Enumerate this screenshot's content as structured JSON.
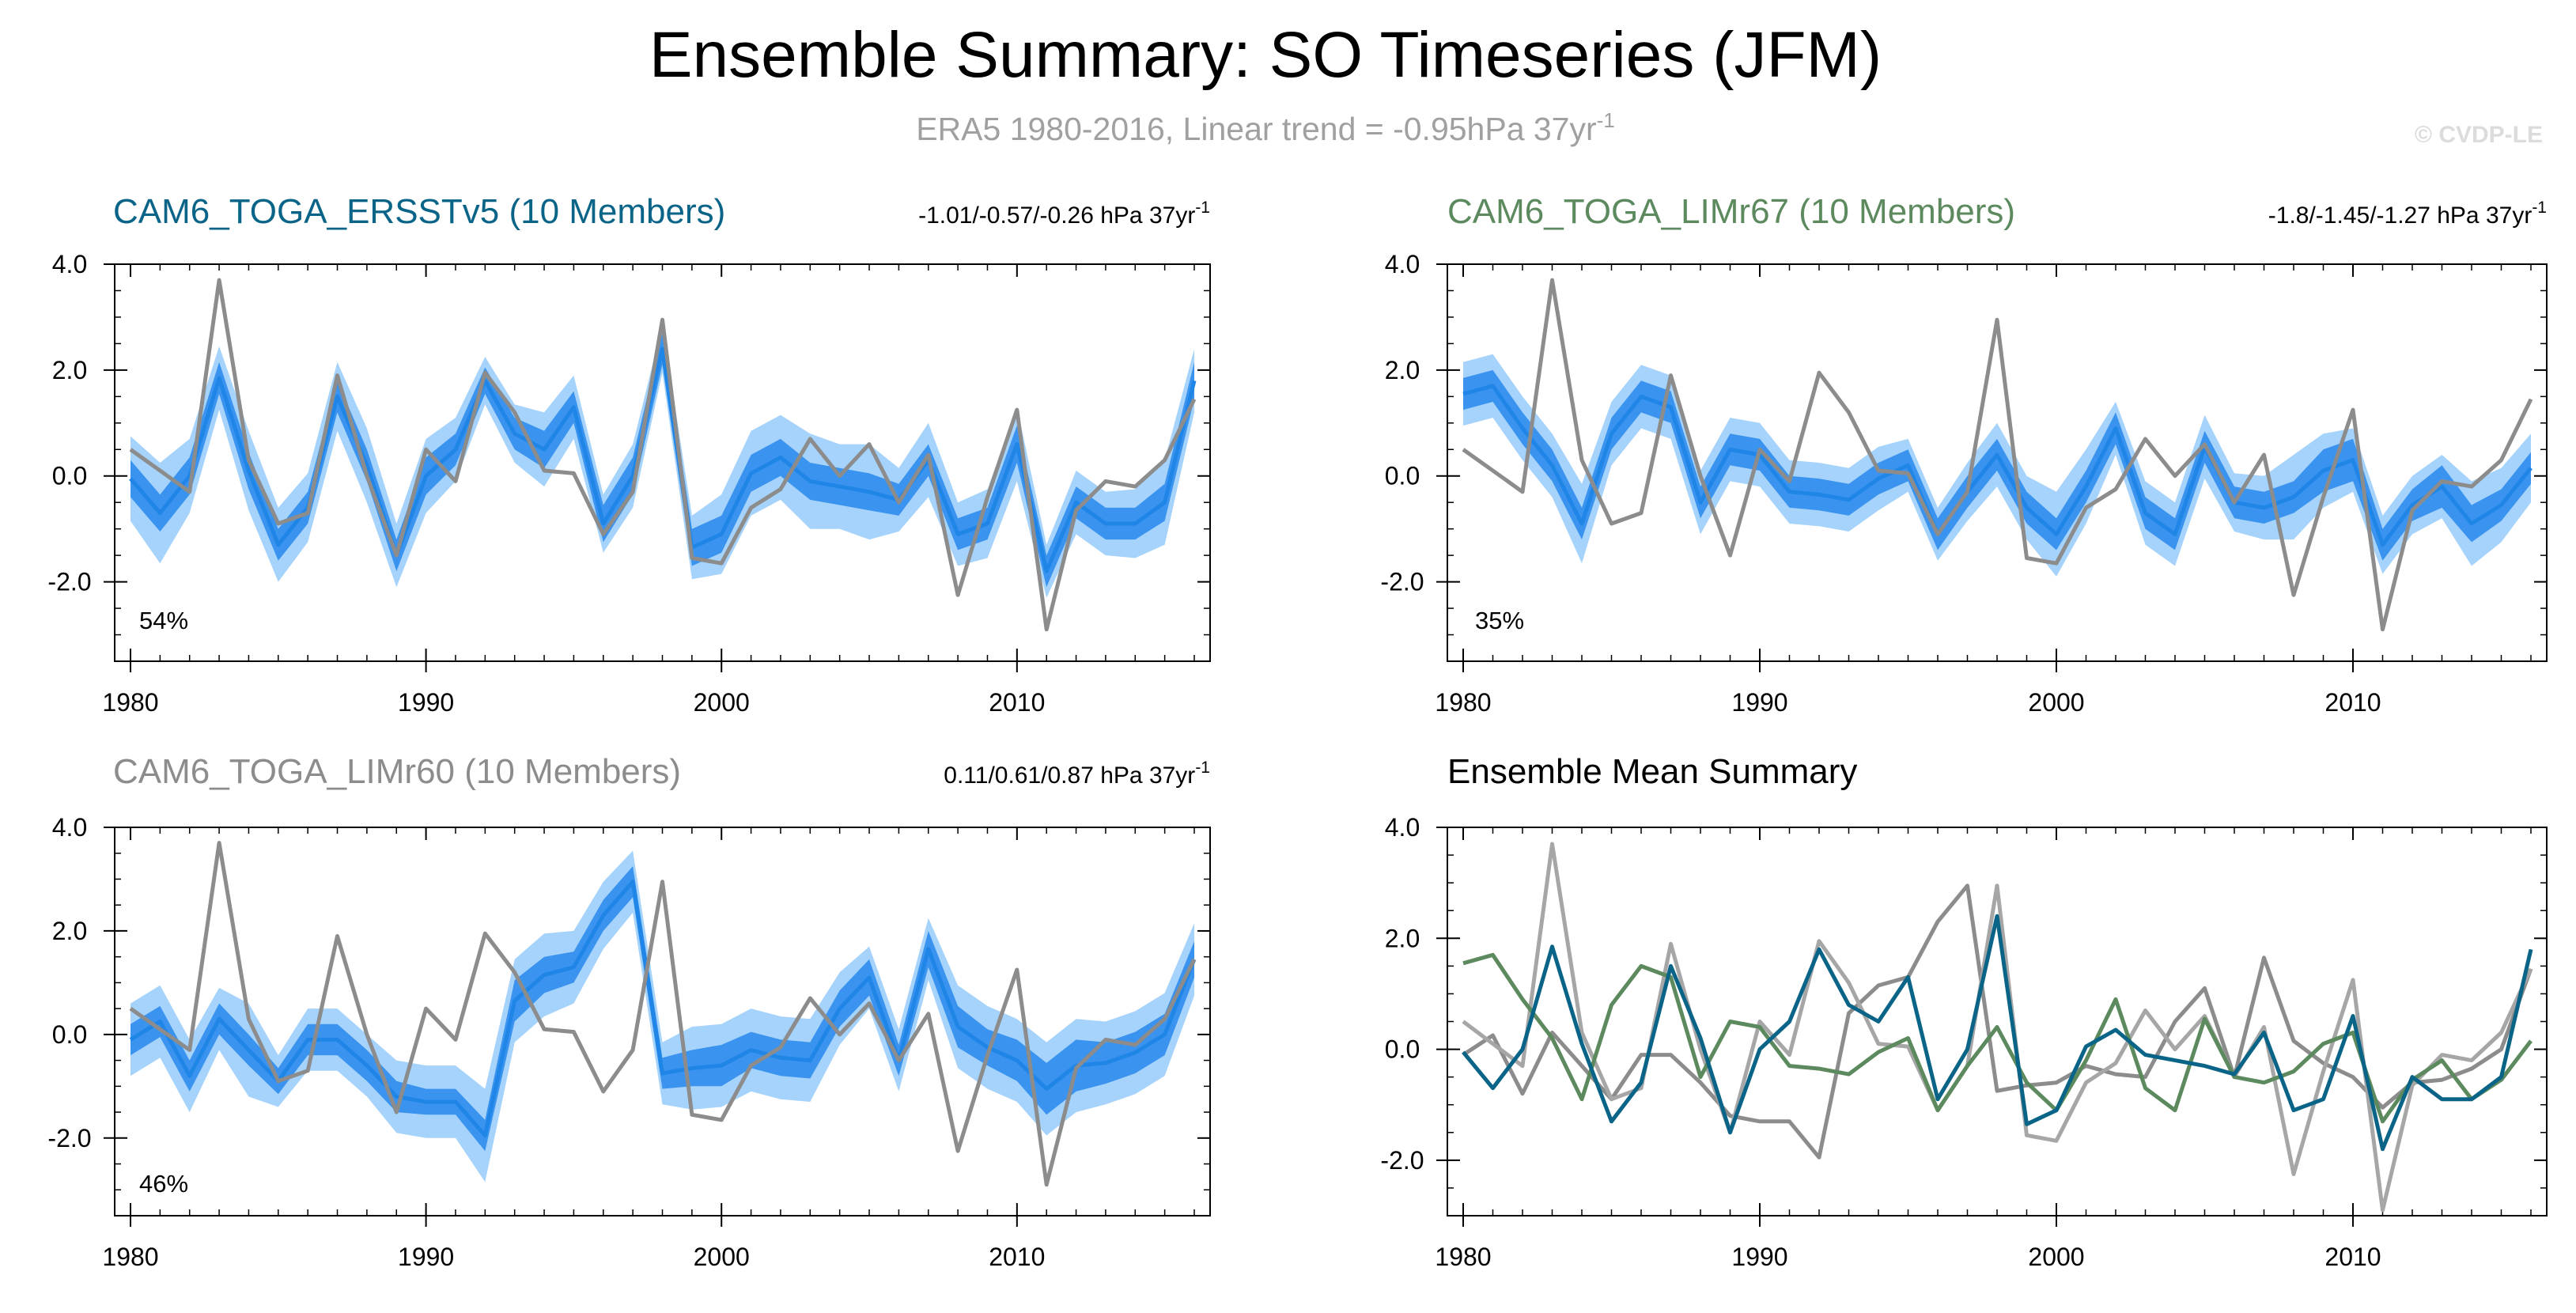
{
  "title": "Ensemble Summary: SO Timeseries (JFM)",
  "subtitle": {
    "text": "ERA5 1980-2016, Linear trend = -0.95hPa 37yr",
    "sup": "-1"
  },
  "copyright": "© CVDP-LE",
  "colors": {
    "obs": "#8c8c8c",
    "ens_mean": "#1f86e8",
    "band_inner": "#3a93ee",
    "band_outer": "#a6d3fb",
    "cam6_ersst": "#0a6488",
    "cam6_limr67": "#5c8a5e",
    "cam6_limr60": "#8c8c8c"
  },
  "chart_data": [
    {
      "type": "line",
      "panel": "top-left",
      "title": "CAM6_TOGA_ERSSTv5 (10 Members)",
      "title_color": "#0a6488",
      "trend": {
        "text": "-1.01/-0.57/-0.26 hPa 37yr",
        "sup": "-1"
      },
      "pct": "54%",
      "xlim": [
        1980,
        2016
      ],
      "ylim": [
        -3.5,
        4.0
      ],
      "xticks": [
        "1980",
        "1990",
        "2000",
        "2010"
      ],
      "yticks": [
        "4.0",
        "2.0",
        "0.0",
        "-2.0"
      ],
      "x": [
        1980,
        1981,
        1982,
        1983,
        1984,
        1985,
        1986,
        1987,
        1988,
        1989,
        1990,
        1991,
        1992,
        1993,
        1994,
        1995,
        1996,
        1997,
        1998,
        1999,
        2000,
        2001,
        2002,
        2003,
        2004,
        2005,
        2006,
        2007,
        2008,
        2009,
        2010,
        2011,
        2012,
        2013,
        2014,
        2015,
        2016
      ],
      "mean": [
        -0.05,
        -0.7,
        0.0,
        1.85,
        0.1,
        -1.3,
        -0.6,
        1.5,
        0.2,
        -1.5,
        0.0,
        0.5,
        1.8,
        0.8,
        0.5,
        1.3,
        -0.9,
        0.0,
        2.4,
        -1.35,
        -1.1,
        0.05,
        0.35,
        -0.1,
        -0.2,
        -0.3,
        -0.45,
        0.3,
        -1.1,
        -0.9,
        0.6,
        -1.8,
        -0.5,
        -0.9,
        -0.9,
        -0.5,
        1.8
      ],
      "inner_half": [
        0.35,
        0.35,
        0.35,
        0.3,
        0.35,
        0.3,
        0.3,
        0.3,
        0.3,
        0.3,
        0.35,
        0.3,
        0.25,
        0.3,
        0.35,
        0.3,
        0.35,
        0.35,
        0.3,
        0.35,
        0.35,
        0.35,
        0.35,
        0.35,
        0.35,
        0.35,
        0.3,
        0.3,
        0.3,
        0.3,
        0.35,
        0.3,
        0.3,
        0.3,
        0.3,
        0.35,
        0.35
      ],
      "outer_half": [
        0.8,
        0.95,
        0.7,
        0.6,
        0.75,
        0.7,
        0.65,
        0.65,
        0.7,
        0.6,
        0.7,
        0.6,
        0.45,
        0.55,
        0.7,
        0.6,
        0.55,
        0.6,
        0.45,
        0.6,
        0.75,
        0.8,
        0.8,
        0.9,
        0.8,
        0.9,
        0.6,
        0.7,
        0.6,
        0.65,
        0.7,
        0.5,
        0.6,
        0.6,
        0.65,
        0.8,
        0.6
      ],
      "obs": [
        0.5,
        0.1,
        -0.3,
        3.7,
        0.3,
        -0.9,
        -0.7,
        1.9,
        0.0,
        -1.5,
        0.5,
        -0.1,
        1.95,
        1.2,
        0.1,
        0.05,
        -1.1,
        -0.3,
        2.95,
        -1.55,
        -1.65,
        -0.6,
        -0.25,
        0.7,
        0.0,
        0.6,
        -0.5,
        0.4,
        -2.25,
        -0.4,
        1.25,
        -2.9,
        -0.65,
        -0.1,
        -0.2,
        0.3,
        1.45
      ]
    },
    {
      "type": "line",
      "panel": "top-right",
      "title": "CAM6_TOGA_LIMr67 (10 Members)",
      "title_color": "#5c8a5e",
      "trend": {
        "text": "-1.8/-1.45/-1.27 hPa 37yr",
        "sup": "-1"
      },
      "pct": "35%",
      "xlim": [
        1980,
        2016
      ],
      "ylim": [
        -3.5,
        4.0
      ],
      "xticks": [
        "1980",
        "1990",
        "2000",
        "2010"
      ],
      "yticks": [
        "4.0",
        "2.0",
        "0.0",
        "-2.0"
      ],
      "x": [
        1980,
        1981,
        1982,
        1983,
        1984,
        1985,
        1986,
        1987,
        1988,
        1989,
        1990,
        1991,
        1992,
        1993,
        1994,
        1995,
        1996,
        1997,
        1998,
        1999,
        2000,
        2001,
        2002,
        2003,
        2004,
        2005,
        2006,
        2007,
        2008,
        2009,
        2010,
        2011,
        2012,
        2013,
        2014,
        2015,
        2016
      ],
      "mean": [
        1.55,
        1.7,
        0.9,
        0.2,
        -0.9,
        0.8,
        1.5,
        1.3,
        -0.5,
        0.5,
        0.4,
        -0.3,
        -0.35,
        -0.45,
        -0.05,
        0.2,
        -1.1,
        -0.3,
        0.4,
        -0.6,
        -1.1,
        -0.2,
        0.9,
        -0.7,
        -1.1,
        0.55,
        -0.5,
        -0.6,
        -0.4,
        0.1,
        0.3,
        -1.3,
        -0.55,
        -0.2,
        -0.9,
        -0.55,
        0.15
      ],
      "inner_half": [
        0.3,
        0.3,
        0.3,
        0.3,
        0.3,
        0.3,
        0.3,
        0.3,
        0.3,
        0.3,
        0.3,
        0.3,
        0.3,
        0.3,
        0.3,
        0.3,
        0.3,
        0.3,
        0.3,
        0.3,
        0.3,
        0.3,
        0.3,
        0.3,
        0.3,
        0.3,
        0.3,
        0.3,
        0.3,
        0.4,
        0.4,
        0.3,
        0.3,
        0.4,
        0.35,
        0.3,
        0.3
      ],
      "outer_half": [
        0.6,
        0.6,
        0.6,
        0.6,
        0.75,
        0.6,
        0.6,
        0.6,
        0.6,
        0.6,
        0.6,
        0.6,
        0.6,
        0.6,
        0.6,
        0.5,
        0.5,
        0.55,
        0.6,
        0.6,
        0.8,
        0.7,
        0.5,
        0.6,
        0.6,
        0.6,
        0.55,
        0.6,
        0.8,
        0.7,
        0.6,
        0.55,
        0.55,
        0.6,
        0.8,
        0.7,
        0.65
      ],
      "obs": [
        0.5,
        0.1,
        -0.3,
        3.7,
        0.3,
        -0.9,
        -0.7,
        1.9,
        0.0,
        -1.5,
        0.5,
        -0.1,
        1.95,
        1.2,
        0.1,
        0.05,
        -1.1,
        -0.3,
        2.95,
        -1.55,
        -1.65,
        -0.6,
        -0.25,
        0.7,
        0.0,
        0.6,
        -0.5,
        0.4,
        -2.25,
        -0.4,
        1.25,
        -2.9,
        -0.65,
        -0.1,
        -0.2,
        0.3,
        1.45
      ]
    },
    {
      "type": "line",
      "panel": "bottom-left",
      "title": "CAM6_TOGA_LIMr60 (10 Members)",
      "title_color": "#8c8c8c",
      "trend": {
        "text": "0.11/0.61/0.87 hPa 37yr",
        "sup": "-1"
      },
      "pct": "46%",
      "xlim": [
        1980,
        2016
      ],
      "ylim": [
        -3.5,
        4.0
      ],
      "xticks": [
        "1980",
        "1990",
        "2000",
        "2010"
      ],
      "yticks": [
        "4.0",
        "2.0",
        "0.0",
        "-2.0"
      ],
      "x": [
        1980,
        1981,
        1982,
        1983,
        1984,
        1985,
        1986,
        1987,
        1988,
        1989,
        1990,
        1991,
        1992,
        1993,
        1994,
        1995,
        1996,
        1997,
        1998,
        1999,
        2000,
        2001,
        2002,
        2003,
        2004,
        2005,
        2006,
        2007,
        2008,
        2009,
        2010,
        2011,
        2012,
        2013,
        2014,
        2015,
        2016
      ],
      "mean": [
        -0.1,
        0.25,
        -0.8,
        0.3,
        -0.3,
        -0.9,
        -0.1,
        -0.1,
        -0.6,
        -1.2,
        -1.3,
        -1.3,
        -1.95,
        0.65,
        1.15,
        1.3,
        2.3,
        2.95,
        -0.75,
        -0.65,
        -0.6,
        -0.3,
        -0.45,
        -0.5,
        0.5,
        1.1,
        -0.5,
        1.65,
        0.15,
        -0.25,
        -0.5,
        -1.05,
        -0.6,
        -0.55,
        -0.35,
        0.0,
        1.45
      ],
      "inner_half": [
        0.3,
        0.3,
        0.3,
        0.3,
        0.3,
        0.25,
        0.3,
        0.3,
        0.3,
        0.3,
        0.25,
        0.25,
        0.3,
        0.4,
        0.35,
        0.3,
        0.3,
        0.3,
        0.3,
        0.35,
        0.4,
        0.35,
        0.35,
        0.35,
        0.35,
        0.35,
        0.3,
        0.35,
        0.4,
        0.35,
        0.4,
        0.5,
        0.5,
        0.4,
        0.4,
        0.4,
        0.35
      ],
      "outer_half": [
        0.7,
        0.7,
        0.7,
        0.6,
        0.9,
        0.5,
        0.6,
        0.6,
        0.6,
        0.7,
        0.7,
        0.7,
        0.9,
        0.8,
        0.8,
        0.7,
        0.65,
        0.6,
        0.6,
        0.8,
        0.8,
        0.8,
        0.8,
        0.8,
        0.7,
        0.6,
        0.6,
        0.6,
        0.8,
        0.8,
        0.8,
        0.9,
        0.9,
        0.8,
        0.8,
        0.8,
        0.7
      ],
      "obs": [
        0.5,
        0.1,
        -0.3,
        3.7,
        0.3,
        -0.9,
        -0.7,
        1.9,
        0.0,
        -1.5,
        0.5,
        -0.1,
        1.95,
        1.2,
        0.1,
        0.05,
        -1.1,
        -0.3,
        2.95,
        -1.55,
        -1.65,
        -0.6,
        -0.25,
        0.7,
        0.0,
        0.6,
        -0.5,
        0.4,
        -2.25,
        -0.4,
        1.25,
        -2.9,
        -0.65,
        -0.1,
        -0.2,
        0.3,
        1.45
      ]
    },
    {
      "type": "line",
      "panel": "bottom-right",
      "title": "Ensemble Mean Summary",
      "title_color": "#000000",
      "xlim": [
        1980,
        2016
      ],
      "ylim": [
        -3.0,
        4.0
      ],
      "xticks": [
        "1980",
        "1990",
        "2000",
        "2010"
      ],
      "yticks": [
        "4.0",
        "2.0",
        "0.0",
        "-2.0"
      ],
      "x": [
        1980,
        1981,
        1982,
        1983,
        1984,
        1985,
        1986,
        1987,
        1988,
        1989,
        1990,
        1991,
        1992,
        1993,
        1994,
        1995,
        1996,
        1997,
        1998,
        1999,
        2000,
        2001,
        2002,
        2003,
        2004,
        2005,
        2006,
        2007,
        2008,
        2009,
        2010,
        2011,
        2012,
        2013,
        2014,
        2015,
        2016
      ],
      "series": [
        {
          "name": "CAM6_TOGA_LIMr60",
          "color": "#8c8c8c",
          "values": [
            -0.1,
            0.25,
            -0.8,
            0.3,
            -0.3,
            -0.9,
            -0.1,
            -0.1,
            -0.6,
            -1.2,
            -1.3,
            -1.3,
            -1.95,
            0.65,
            1.15,
            1.3,
            2.3,
            2.95,
            -0.75,
            -0.65,
            -0.6,
            -0.3,
            -0.45,
            -0.5,
            0.5,
            1.1,
            -0.5,
            1.65,
            0.15,
            -0.25,
            -0.5,
            -1.05,
            -0.6,
            -0.55,
            -0.35,
            0.0,
            1.45
          ]
        },
        {
          "name": "ERA5",
          "color": "#a6a6a6",
          "values": [
            0.5,
            0.1,
            -0.3,
            3.7,
            0.3,
            -0.9,
            -0.7,
            1.9,
            0.0,
            -1.5,
            0.5,
            -0.1,
            1.95,
            1.2,
            0.1,
            0.05,
            -1.1,
            -0.3,
            2.95,
            -1.55,
            -1.65,
            -0.6,
            -0.25,
            0.7,
            0.0,
            0.6,
            -0.5,
            0.4,
            -2.25,
            -0.4,
            1.25,
            -2.9,
            -0.65,
            -0.1,
            -0.2,
            0.3,
            1.45
          ]
        },
        {
          "name": "CAM6_TOGA_LIMr67",
          "color": "#5c8a5e",
          "values": [
            1.55,
            1.7,
            0.9,
            0.2,
            -0.9,
            0.8,
            1.5,
            1.3,
            -0.5,
            0.5,
            0.4,
            -0.3,
            -0.35,
            -0.45,
            -0.05,
            0.2,
            -1.1,
            -0.3,
            0.4,
            -0.6,
            -1.1,
            -0.2,
            0.9,
            -0.7,
            -1.1,
            0.55,
            -0.5,
            -0.6,
            -0.4,
            0.1,
            0.3,
            -1.3,
            -0.55,
            -0.2,
            -0.9,
            -0.55,
            0.15
          ]
        },
        {
          "name": "CAM6_TOGA_ERSSTv5",
          "color": "#0a6488",
          "values": [
            -0.05,
            -0.7,
            0.0,
            1.85,
            0.1,
            -1.3,
            -0.6,
            1.5,
            0.2,
            -1.5,
            0.0,
            0.5,
            1.8,
            0.8,
            0.5,
            1.3,
            -0.9,
            0.0,
            2.4,
            -1.35,
            -1.1,
            0.05,
            0.35,
            -0.1,
            -0.2,
            -0.3,
            -0.45,
            0.3,
            -1.1,
            -0.9,
            0.6,
            -1.8,
            -0.5,
            -0.9,
            -0.9,
            -0.5,
            1.8
          ]
        }
      ]
    }
  ]
}
